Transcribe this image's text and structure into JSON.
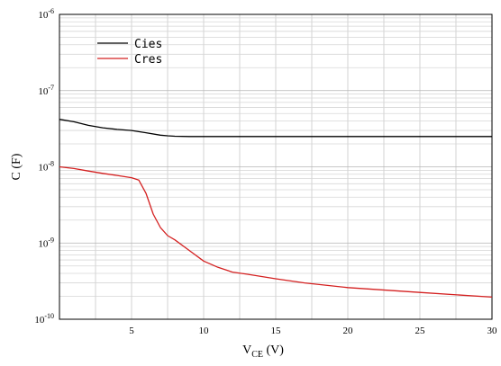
{
  "chart_data": {
    "type": "line",
    "xlabel_main": "V",
    "xlabel_sub": "CE",
    "xlabel_tail": " (V)",
    "ylabel": "C (F)",
    "xlim": [
      0,
      30
    ],
    "ylim": [
      1e-10,
      1e-06
    ],
    "yscale": "log",
    "grid": true,
    "legend_placement": "top-left",
    "x_ticks": [
      5,
      10,
      15,
      20,
      25,
      30
    ],
    "x_tick_labels": [
      "5",
      "10",
      "15",
      "20",
      "25",
      "30"
    ],
    "y_ticks": [
      {
        "value": 1e-06,
        "base": "10",
        "exp": "-6"
      },
      {
        "value": 1e-07,
        "base": "10",
        "exp": "-7"
      },
      {
        "value": 1e-08,
        "base": "10",
        "exp": "-8"
      },
      {
        "value": 1e-09,
        "base": "10",
        "exp": "-9"
      },
      {
        "value": 1e-10,
        "base": "10",
        "exp": "-10"
      }
    ],
    "series": [
      {
        "name": "Cies",
        "color": "#000000",
        "x": [
          0,
          1,
          2,
          3,
          4,
          5,
          6,
          7,
          7.5,
          8,
          9,
          10,
          12,
          15,
          20,
          25,
          30
        ],
        "y": [
          4.2e-08,
          3.9e-08,
          3.5e-08,
          3.25e-08,
          3.1e-08,
          3e-08,
          2.8e-08,
          2.6e-08,
          2.55e-08,
          2.52e-08,
          2.5e-08,
          2.5e-08,
          2.5e-08,
          2.5e-08,
          2.5e-08,
          2.5e-08,
          2.5e-08
        ]
      },
      {
        "name": "Cres",
        "color": "#d42020",
        "x": [
          0,
          1,
          2,
          3,
          4,
          5,
          5.5,
          6,
          6.5,
          7,
          7.5,
          8,
          9,
          10,
          11,
          12,
          13,
          15,
          17,
          20,
          25,
          30
        ],
        "y": [
          1e-08,
          9.5e-09,
          8.8e-09,
          8.2e-09,
          7.7e-09,
          7.2e-09,
          6.7e-09,
          4.5e-09,
          2.4e-09,
          1.6e-09,
          1.25e-09,
          1.1e-09,
          8e-10,
          5.8e-10,
          4.8e-10,
          4.15e-10,
          3.9e-10,
          3.4e-10,
          3e-10,
          2.6e-10,
          2.25e-10,
          1.95e-10
        ]
      }
    ]
  }
}
